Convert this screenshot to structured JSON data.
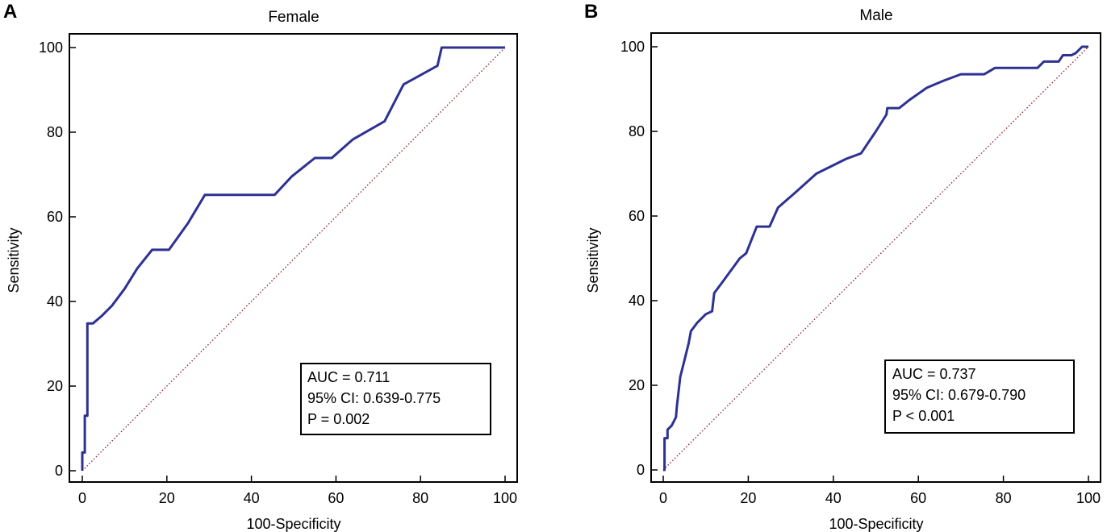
{
  "chart_data": [
    {
      "type": "line",
      "panel_label": "A",
      "title": "Female",
      "xlabel": "100-Specificity",
      "ylabel": "Sensitivity",
      "xlim": [
        0,
        100
      ],
      "ylim": [
        0,
        100
      ],
      "xticks": [
        "0",
        "20",
        "40",
        "60",
        "80",
        "100"
      ],
      "yticks": [
        "0",
        "20",
        "40",
        "60",
        "80",
        "100"
      ],
      "series": [
        {
          "name": "ROC curve",
          "color": "#2e3192",
          "x": [
            0,
            0,
            0.6,
            0.6,
            1.2,
            1.2,
            2.5,
            4.5,
            7,
            10,
            13,
            16.5,
            20.5,
            25,
            29,
            35,
            45.5,
            49.5,
            55,
            59,
            64,
            71.5,
            76,
            84,
            85,
            100
          ],
          "y": [
            0,
            4.3,
            4.3,
            13,
            13,
            34.8,
            34.8,
            36.5,
            39,
            43,
            47.8,
            52.2,
            52.2,
            58.5,
            65.2,
            65.2,
            65.2,
            69.5,
            73.9,
            73.9,
            78.3,
            82.6,
            91.3,
            95.7,
            100,
            100
          ]
        },
        {
          "name": "Reference line",
          "color": "#8b1a2b",
          "style": "dotted",
          "x": [
            0,
            100
          ],
          "y": [
            0,
            100
          ]
        }
      ],
      "annotations": [
        "AUC = 0.711",
        "95% CI: 0.639-0.775",
        "P = 0.002"
      ]
    },
    {
      "type": "line",
      "panel_label": "B",
      "title": "Male",
      "xlabel": "100-Specificity",
      "ylabel": "Sensitivity",
      "xlim": [
        0,
        100
      ],
      "ylim": [
        0,
        100
      ],
      "xticks": [
        "0",
        "20",
        "40",
        "60",
        "80",
        "100"
      ],
      "yticks": [
        "0",
        "20",
        "40",
        "60",
        "80",
        "100"
      ],
      "series": [
        {
          "name": "ROC curve",
          "color": "#2e3192",
          "x": [
            0,
            0.3,
            0.3,
            1,
            1,
            2,
            3,
            3.2,
            3.5,
            4,
            5,
            6,
            6.5,
            8,
            10,
            11.5,
            12,
            14,
            18,
            19.5,
            22,
            25,
            27,
            31,
            36,
            40,
            43,
            46.5,
            50,
            52.5,
            52.7,
            55.5,
            58,
            62,
            66,
            70,
            75.5,
            78,
            88,
            89.5,
            93,
            94,
            96,
            97,
            98.5,
            100
          ],
          "y": [
            0,
            0,
            7.5,
            7.5,
            9.5,
            10.5,
            12.5,
            15,
            17.5,
            22,
            26,
            30,
            32.8,
            34.8,
            36.8,
            37.5,
            41.8,
            44.5,
            50,
            51.2,
            57.5,
            57.5,
            62,
            65.5,
            70,
            72,
            73.5,
            74.8,
            80,
            84,
            85.5,
            85.5,
            87.5,
            90.3,
            92,
            93.5,
            93.5,
            95,
            95,
            96.5,
            96.5,
            98,
            98,
            98.5,
            100,
            100
          ]
        },
        {
          "name": "Reference line",
          "color": "#8b1a2b",
          "style": "dotted",
          "x": [
            0,
            100
          ],
          "y": [
            0,
            100
          ]
        }
      ],
      "annotations": [
        "AUC = 0.737",
        "95% CI: 0.679-0.790",
        "P < 0.001"
      ]
    }
  ]
}
